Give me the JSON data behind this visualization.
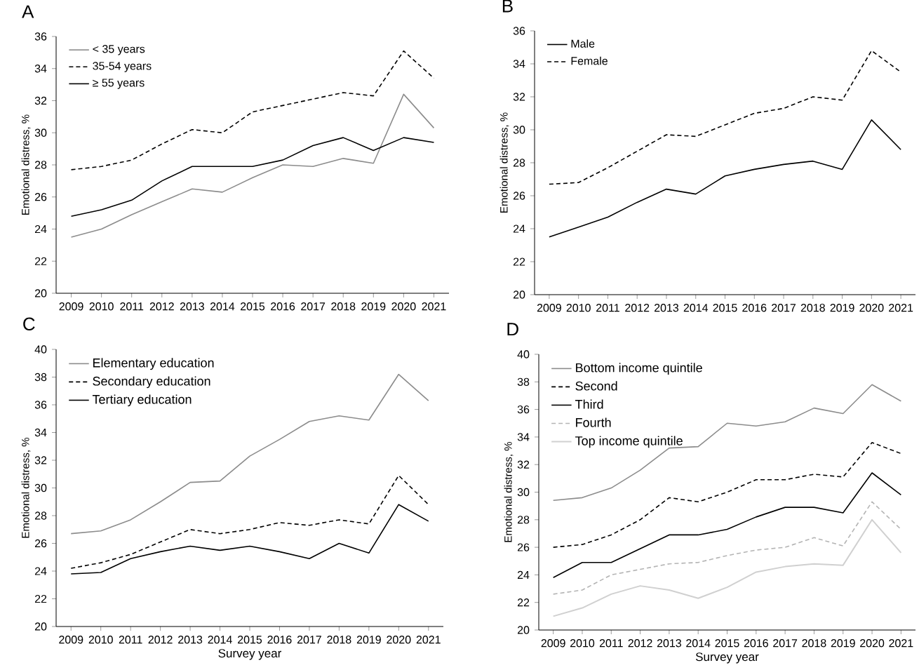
{
  "chart_data": [
    {
      "type": "line",
      "title": "A",
      "ylabel": "Emotional distress, %",
      "categories": [
        "2009",
        "2010",
        "2011",
        "2012",
        "2013",
        "2014",
        "2015",
        "2016",
        "2017",
        "2018",
        "2019",
        "2020",
        "2021"
      ],
      "ylim": [
        20,
        36
      ],
      "yticks": [
        20,
        22,
        24,
        26,
        28,
        30,
        32,
        34,
        36
      ],
      "legend": "top left",
      "grid": false,
      "marker": "none",
      "series": [
        {
          "name": "< 35 years",
          "color": "#8c8c8c",
          "line_style": "solid",
          "values": [
            23.5,
            24.0,
            24.9,
            25.7,
            26.5,
            26.3,
            27.2,
            28.0,
            27.9,
            28.4,
            28.1,
            32.4,
            30.3
          ]
        },
        {
          "name": "35-54 years",
          "color": "#000000",
          "line_style": "dashed",
          "values": [
            27.7,
            27.9,
            28.3,
            29.3,
            30.2,
            30.0,
            31.3,
            31.7,
            32.1,
            32.5,
            32.3,
            35.1,
            33.4
          ]
        },
        {
          "name": "≥ 55 years",
          "color": "#000000",
          "line_style": "solid",
          "values": [
            24.8,
            25.2,
            25.8,
            27.0,
            27.9,
            27.9,
            27.9,
            28.3,
            29.2,
            29.7,
            28.9,
            29.7,
            29.4
          ]
        }
      ]
    },
    {
      "type": "line",
      "title": "B",
      "ylabel": "Emotional distress, %",
      "categories": [
        "2009",
        "2010",
        "2011",
        "2012",
        "2013",
        "2014",
        "2015",
        "2016",
        "2017",
        "2018",
        "2019",
        "2020",
        "2021"
      ],
      "ylim": [
        20,
        36
      ],
      "yticks": [
        20,
        22,
        24,
        26,
        28,
        30,
        32,
        34,
        36
      ],
      "legend": "top left",
      "grid": false,
      "marker": "none",
      "series": [
        {
          "name": "Male",
          "color": "#000000",
          "line_style": "solid",
          "values": [
            23.5,
            24.1,
            24.7,
            25.6,
            26.4,
            26.1,
            27.2,
            27.6,
            27.9,
            28.1,
            27.6,
            30.6,
            28.8
          ]
        },
        {
          "name": "Female",
          "color": "#000000",
          "line_style": "dashed",
          "values": [
            26.7,
            26.8,
            27.7,
            28.7,
            29.7,
            29.6,
            30.3,
            31.0,
            31.3,
            32.0,
            31.8,
            34.8,
            33.5
          ]
        }
      ]
    },
    {
      "type": "line",
      "title": "C",
      "xlabel": "Survey year",
      "ylabel": "Emotional distress, %",
      "categories": [
        "2009",
        "2010",
        "2011",
        "2012",
        "2013",
        "2014",
        "2015",
        "2016",
        "2017",
        "2018",
        "2019",
        "2020",
        "2021"
      ],
      "ylim": [
        20,
        40
      ],
      "yticks": [
        20,
        22,
        24,
        26,
        28,
        30,
        32,
        34,
        36,
        38,
        40
      ],
      "legend": "top left",
      "grid": false,
      "marker": "none",
      "series": [
        {
          "name": "Elementary education",
          "color": "#8c8c8c",
          "line_style": "solid",
          "values": [
            26.7,
            26.9,
            27.7,
            29.0,
            30.4,
            30.5,
            32.3,
            33.5,
            34.8,
            35.2,
            34.9,
            38.2,
            36.3
          ]
        },
        {
          "name": "Secondary education",
          "color": "#000000",
          "line_style": "dashed",
          "values": [
            24.2,
            24.6,
            25.2,
            26.1,
            27.0,
            26.7,
            27.0,
            27.5,
            27.3,
            27.7,
            27.4,
            30.9,
            28.8
          ]
        },
        {
          "name": "Tertiary education",
          "color": "#000000",
          "line_style": "solid",
          "values": [
            23.8,
            23.9,
            24.9,
            25.4,
            25.8,
            25.5,
            25.8,
            25.4,
            24.9,
            26.0,
            25.3,
            28.8,
            27.6
          ]
        }
      ]
    },
    {
      "type": "line",
      "title": "D",
      "xlabel": "Survey year",
      "ylabel": "Emotional distress, %",
      "categories": [
        "2009",
        "2010",
        "2011",
        "2012",
        "2013",
        "2014",
        "2015",
        "2016",
        "2017",
        "2018",
        "2019",
        "2020",
        "2021"
      ],
      "ylim": [
        20,
        40
      ],
      "yticks": [
        20,
        22,
        24,
        26,
        28,
        30,
        32,
        34,
        36,
        38,
        40
      ],
      "legend": "top left",
      "grid": false,
      "marker": "none",
      "series": [
        {
          "name": "Bottom income quintile",
          "color": "#8c8c8c",
          "line_style": "solid",
          "values": [
            29.4,
            29.6,
            30.3,
            31.6,
            33.2,
            33.3,
            35.0,
            34.8,
            35.1,
            36.1,
            35.7,
            37.8,
            36.6
          ]
        },
        {
          "name": "Second",
          "color": "#000000",
          "line_style": "dashed",
          "values": [
            26.0,
            26.2,
            26.9,
            28.0,
            29.6,
            29.3,
            30.0,
            30.9,
            30.9,
            31.3,
            31.1,
            33.6,
            32.8
          ]
        },
        {
          "name": "Third",
          "color": "#000000",
          "line_style": "solid",
          "values": [
            23.8,
            24.9,
            24.9,
            25.9,
            26.9,
            26.9,
            27.3,
            28.2,
            28.9,
            28.9,
            28.5,
            31.4,
            29.8
          ]
        },
        {
          "name": "Fourth",
          "color": "#b4b4b4",
          "line_style": "dashed",
          "values": [
            22.6,
            22.9,
            24.0,
            24.4,
            24.8,
            24.9,
            25.4,
            25.8,
            26.0,
            26.7,
            26.1,
            29.3,
            27.3
          ]
        },
        {
          "name": "Top income quintile",
          "color": "#d0d0d0",
          "line_style": "solid",
          "values": [
            21.0,
            21.6,
            22.6,
            23.2,
            22.9,
            22.3,
            23.1,
            24.2,
            24.6,
            24.8,
            24.7,
            28.0,
            25.6
          ]
        }
      ]
    }
  ]
}
